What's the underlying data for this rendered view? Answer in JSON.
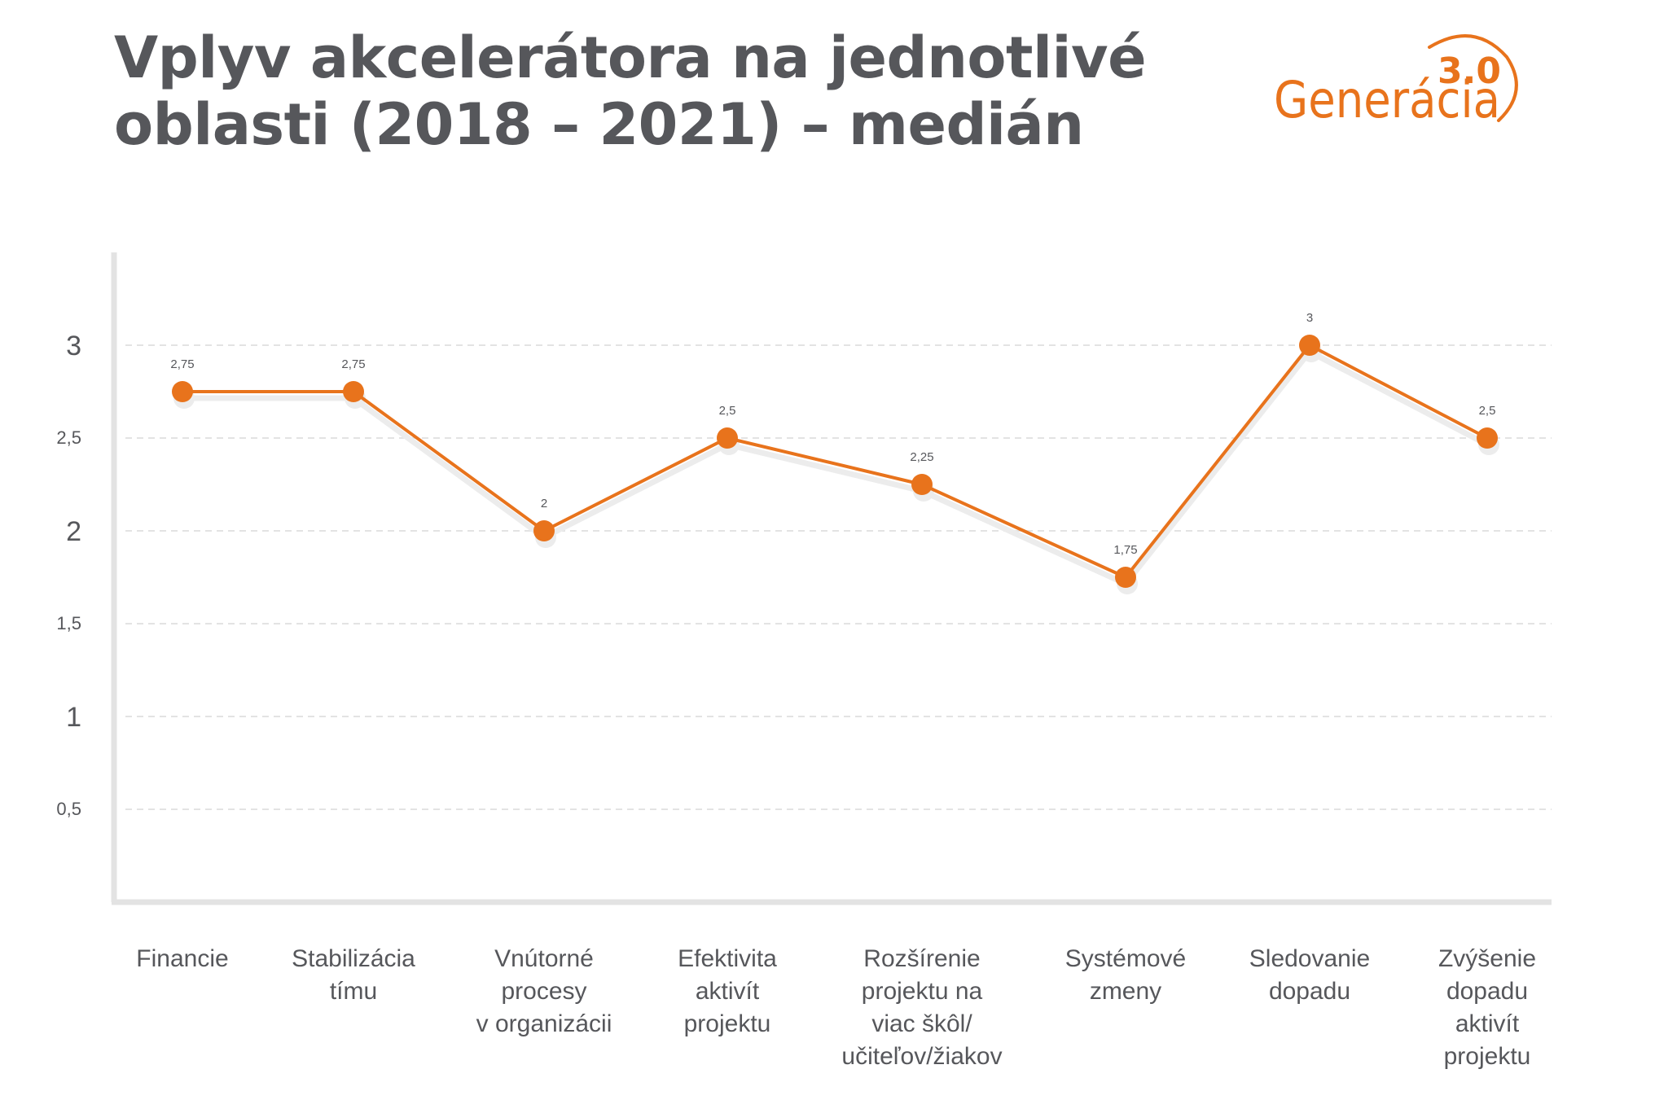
{
  "title_lines": [
    "Vplyv akcelerátora na jednotlivé",
    "oblasti (2018 – 2021) – medián"
  ],
  "logo": {
    "word": "Generácia",
    "version": "3.0",
    "color": "#e8731c"
  },
  "colors": {
    "line": "#e8731c",
    "title": "#56575b",
    "axis": "#e3e3e3",
    "grid": "#e3e3e3",
    "text": "#56575b"
  },
  "chart_data": {
    "type": "line",
    "title": "",
    "xlabel": "",
    "ylabel": "",
    "ylim": [
      0,
      3.5
    ],
    "grid": true,
    "yticks": [
      {
        "value": 0.5,
        "label": "0,5",
        "major": false
      },
      {
        "value": 1,
        "label": "1",
        "major": true
      },
      {
        "value": 1.5,
        "label": "1,5",
        "major": false
      },
      {
        "value": 2,
        "label": "2",
        "major": true
      },
      {
        "value": 2.5,
        "label": "2,5",
        "major": false
      },
      {
        "value": 3,
        "label": "3",
        "major": true
      }
    ],
    "categories": [
      [
        "Financie"
      ],
      [
        "Stabilizácia",
        "tímu"
      ],
      [
        "Vnútorné",
        "procesy",
        "v organizácii"
      ],
      [
        "Efektivita",
        "aktivít",
        "projektu"
      ],
      [
        "Rozšírenie",
        "projektu na",
        "viac škôl/",
        "učiteľov/žiakov"
      ],
      [
        "Systémové",
        "zmeny"
      ],
      [
        "Sledovanie",
        "dopadu"
      ],
      [
        "Zvýšenie",
        "dopadu",
        "aktivít",
        "projektu"
      ]
    ],
    "values": [
      2.75,
      2.75,
      2,
      2.5,
      2.25,
      1.75,
      3,
      2.5
    ],
    "value_labels": [
      "2,75",
      "2,75",
      "2",
      "2,5",
      "2,25",
      "1,75",
      "3",
      "2,5"
    ]
  }
}
